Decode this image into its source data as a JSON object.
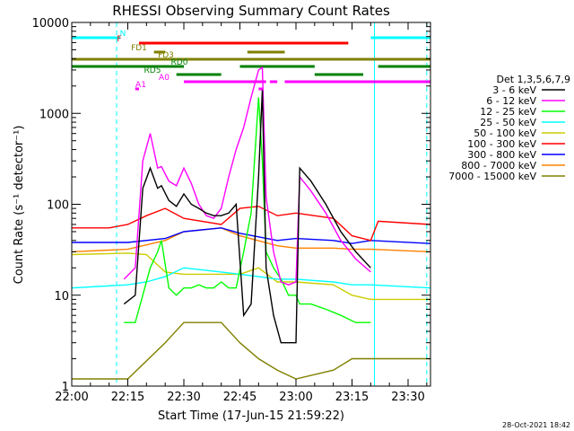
{
  "chart_data": {
    "type": "line",
    "title": "RHESSI Observing Summary Count Rates",
    "xlabel": "Start Time (17-Jun-15 21:59:22)",
    "ylabel": "Count Rate (s⁻¹ detector⁻¹)",
    "y_scale": "log",
    "ylim": [
      1,
      10000
    ],
    "xlim": [
      "22:00",
      "23:36"
    ],
    "x_ticks": [
      "22:00",
      "22:15",
      "22:30",
      "22:45",
      "23:00",
      "23:15",
      "23:30"
    ],
    "y_ticks": [
      "1",
      "10",
      "100",
      "1000",
      "10000"
    ],
    "timestamp": "28-Oct-2021 18:42",
    "legend_title": "Det 1,3,5,6,7,9",
    "legend_position": "right",
    "flags": [
      {
        "label": "N",
        "color": "#00ffff",
        "segments": [
          [
            "22:00",
            "22:13"
          ],
          [
            "23:20",
            "23:36"
          ]
        ]
      },
      {
        "label": "F",
        "color": "#ff0000",
        "segments": [
          [
            "22:18",
            "23:14"
          ]
        ]
      },
      {
        "label": "FD1",
        "color": "#808000",
        "segments": [
          [
            "22:22",
            "22:25"
          ],
          [
            "22:47",
            "22:57"
          ]
        ]
      },
      {
        "label": "FD3",
        "color": "#808000",
        "segments": [
          [
            "22:00",
            "23:36"
          ]
        ]
      },
      {
        "label": "RD0",
        "color": "#008000",
        "segments": [
          [
            "22:00",
            "22:30"
          ],
          [
            "22:45",
            "23:05"
          ],
          [
            "23:22",
            "23:36"
          ]
        ]
      },
      {
        "label": "RD5",
        "color": "#008000",
        "segments": [
          [
            "22:28",
            "22:40"
          ],
          [
            "23:05",
            "23:18"
          ]
        ]
      },
      {
        "label": "A0",
        "color": "#ff00ff",
        "segments": [
          [
            "22:30",
            "22:52"
          ],
          [
            "22:53",
            "22:55"
          ],
          [
            "22:57",
            "23:36"
          ]
        ]
      },
      {
        "label": "A1",
        "color": "#ff00ff",
        "segments": [
          [
            "22:17",
            "22:18"
          ],
          [
            "22:50",
            "22:51"
          ]
        ]
      }
    ],
    "vlines": [
      {
        "time": "22:00",
        "style": "solid",
        "color": "#00ffff"
      },
      {
        "time": "22:12",
        "style": "dashed",
        "color": "#00ffff"
      },
      {
        "time": "23:21",
        "style": "solid",
        "color": "#00ffff"
      },
      {
        "time": "23:35",
        "style": "dashed",
        "color": "#00ffff"
      }
    ],
    "series": [
      {
        "name": "3 - 6 keV",
        "color": "#000000",
        "x": [
          "22:14",
          "22:17",
          "22:19",
          "22:21",
          "22:23",
          "22:24",
          "22:26",
          "22:28",
          "22:30",
          "22:32",
          "22:34",
          "22:36",
          "22:38",
          "22:40",
          "22:42",
          "22:44",
          "22:46",
          "22:48",
          "22:50",
          "22:51",
          "22:52",
          "22:54",
          "22:56",
          "22:58",
          "23:00",
          "23:01",
          "23:04",
          "23:08",
          "23:12",
          "23:16",
          "23:20"
        ],
        "y": [
          8,
          10,
          150,
          250,
          150,
          160,
          110,
          95,
          130,
          100,
          90,
          80,
          75,
          75,
          80,
          100,
          6,
          8,
          200,
          1800,
          20,
          6,
          3,
          3,
          3,
          250,
          180,
          100,
          50,
          30,
          20
        ]
      },
      {
        "name": "6 - 12 keV",
        "color": "#ff00ff",
        "x": [
          "22:14",
          "22:17",
          "22:19",
          "22:21",
          "22:23",
          "22:24",
          "22:26",
          "22:28",
          "22:30",
          "22:32",
          "22:34",
          "22:36",
          "22:38",
          "22:40",
          "22:42",
          "22:44",
          "22:46",
          "22:48",
          "22:50",
          "22:51",
          "22:52",
          "22:54",
          "22:56",
          "22:58",
          "23:00",
          "23:01",
          "23:04",
          "23:08",
          "23:12",
          "23:16",
          "23:20"
        ],
        "y": [
          15,
          20,
          300,
          600,
          250,
          260,
          180,
          160,
          250,
          170,
          100,
          75,
          70,
          90,
          200,
          400,
          700,
          1500,
          3000,
          3200,
          120,
          30,
          14,
          13,
          14,
          200,
          140,
          80,
          40,
          25,
          18
        ]
      },
      {
        "name": "12 - 25 keV",
        "color": "#00ff00",
        "x": [
          "22:14",
          "22:17",
          "22:19",
          "22:21",
          "22:23",
          "22:24",
          "22:26",
          "22:28",
          "22:30",
          "22:32",
          "22:34",
          "22:36",
          "22:38",
          "22:40",
          "22:42",
          "22:44",
          "22:46",
          "22:48",
          "22:50",
          "22:51",
          "22:52",
          "22:54",
          "22:56",
          "22:58",
          "23:00",
          "23:01",
          "23:04",
          "23:08",
          "23:12",
          "23:16",
          "23:20"
        ],
        "y": [
          5,
          5,
          10,
          20,
          30,
          40,
          12,
          10,
          12,
          12,
          13,
          12,
          12,
          14,
          12,
          12,
          30,
          80,
          1500,
          300,
          30,
          20,
          15,
          10,
          10,
          8,
          8,
          7,
          6,
          5,
          5
        ]
      },
      {
        "name": "25 - 50 keV",
        "color": "#00ffff",
        "x": [
          "22:00",
          "22:15",
          "22:20",
          "22:25",
          "22:30",
          "22:40",
          "22:45",
          "22:50",
          "22:55",
          "23:00",
          "23:10",
          "23:15",
          "23:20",
          "23:36"
        ],
        "y": [
          12,
          13,
          14,
          16,
          20,
          18,
          17,
          16,
          15,
          15,
          14,
          13,
          13,
          12
        ]
      },
      {
        "name": "50 - 100 keV",
        "color": "#cccc00",
        "x": [
          "22:00",
          "22:15",
          "22:20",
          "22:25",
          "22:30",
          "22:40",
          "22:45",
          "22:50",
          "22:55",
          "23:00",
          "23:10",
          "23:15",
          "23:20",
          "23:36"
        ],
        "y": [
          28,
          29,
          28,
          18,
          17,
          17,
          17,
          20,
          14,
          14,
          13,
          10,
          9,
          9
        ]
      },
      {
        "name": "100 - 300 keV",
        "color": "#ff0000",
        "x": [
          "22:00",
          "22:10",
          "22:15",
          "22:20",
          "22:25",
          "22:30",
          "22:40",
          "22:45",
          "22:50",
          "22:55",
          "23:00",
          "23:10",
          "23:15",
          "23:20",
          "23:22",
          "23:36"
        ],
        "y": [
          55,
          55,
          60,
          75,
          90,
          70,
          60,
          90,
          95,
          75,
          80,
          70,
          45,
          40,
          65,
          60
        ]
      },
      {
        "name": "300 - 800 keV",
        "color": "#0000ff",
        "x": [
          "22:00",
          "22:15",
          "22:25",
          "22:30",
          "22:40",
          "22:45",
          "22:55",
          "23:00",
          "23:10",
          "23:15",
          "23:20",
          "23:36"
        ],
        "y": [
          38,
          38,
          42,
          50,
          55,
          48,
          40,
          42,
          40,
          37,
          40,
          37
        ]
      },
      {
        "name": "800 - 7000 keV",
        "color": "#ff8000",
        "x": [
          "22:00",
          "22:15",
          "22:25",
          "22:30",
          "22:40",
          "22:45",
          "22:55",
          "23:00",
          "23:10",
          "23:15",
          "23:20",
          "23:36"
        ],
        "y": [
          30,
          32,
          40,
          50,
          55,
          45,
          35,
          33,
          33,
          32,
          32,
          30
        ]
      },
      {
        "name": "7000 - 15000 keV",
        "color": "#808000",
        "x": [
          "22:00",
          "22:15",
          "22:25",
          "22:30",
          "22:40",
          "22:45",
          "22:50",
          "22:55",
          "23:00",
          "23:10",
          "23:15",
          "23:20",
          "23:36"
        ],
        "y": [
          1.2,
          1.2,
          3,
          5,
          5,
          3,
          2,
          1.5,
          1.2,
          1.5,
          2,
          2,
          2
        ]
      }
    ]
  }
}
